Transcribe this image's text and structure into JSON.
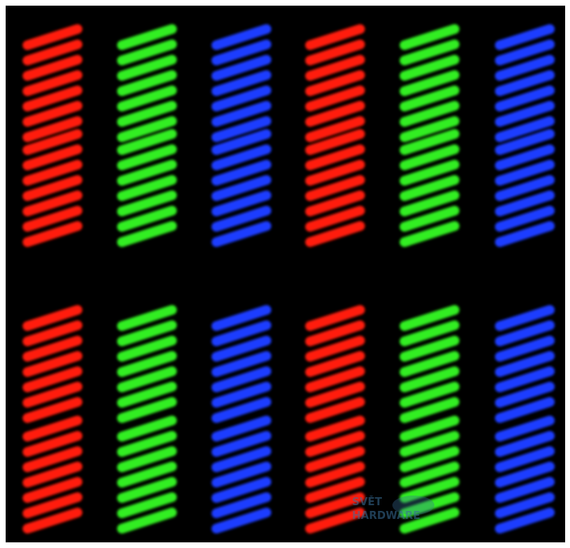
{
  "watermark": {
    "line1": "SVĚT",
    "line2": "HARDWARE"
  }
}
